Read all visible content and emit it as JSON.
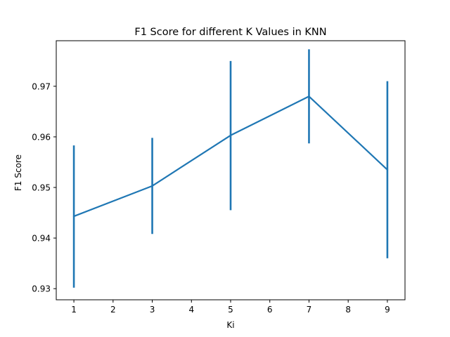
{
  "chart_data": {
    "type": "line",
    "title": "F1 Score for different K Values in KNN",
    "xlabel": "Ki",
    "ylabel": "F1 Score",
    "xlim": [
      0.55,
      9.45
    ],
    "ylim": [
      0.9278,
      0.979
    ],
    "xticks": [
      1,
      2,
      3,
      4,
      5,
      6,
      7,
      8,
      9
    ],
    "yticks": [
      0.93,
      0.94,
      0.95,
      0.96,
      0.97
    ],
    "grid": false,
    "series": [
      {
        "color": "#1f77b4",
        "x": [
          1,
          3,
          5,
          7,
          9
        ],
        "y": [
          0.9443,
          0.9503,
          0.9603,
          0.968,
          0.9535
        ],
        "err_low": [
          0.9302,
          0.9408,
          0.9455,
          0.9587,
          0.936
        ],
        "err_high": [
          0.9583,
          0.9598,
          0.975,
          0.9773,
          0.971
        ]
      }
    ]
  }
}
